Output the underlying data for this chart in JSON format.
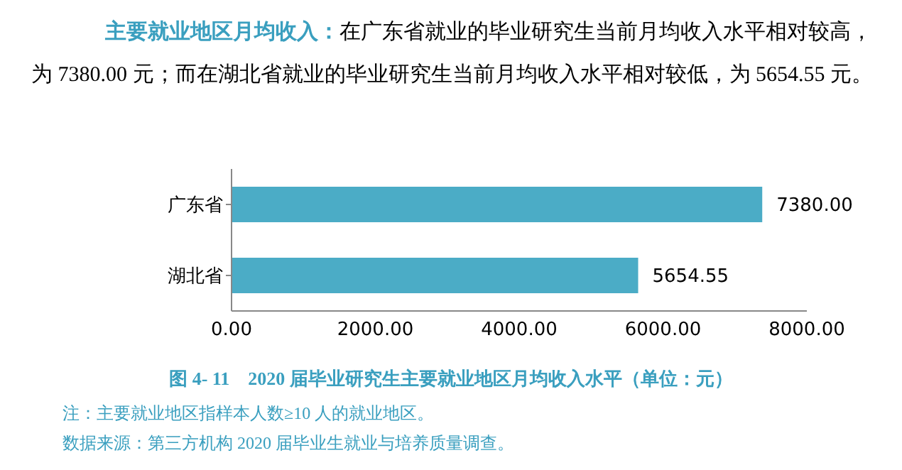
{
  "chart_data": {
    "type": "bar",
    "orientation": "horizontal",
    "title": "图 4- 11　2020 届毕业研究生主要就业地区月均收入水平（单位：元）",
    "categories": [
      "广东省",
      "湖北省"
    ],
    "values": [
      7380.0,
      5654.55
    ],
    "value_labels": [
      "7380.00",
      "5654.55"
    ],
    "color": "#4bacc6",
    "xlim": [
      0,
      8000
    ],
    "xticks": [
      {
        "value": 0,
        "label": "0.00"
      },
      {
        "value": 2000,
        "label": "2000.00"
      },
      {
        "value": 4000,
        "label": "4000.00"
      },
      {
        "value": 6000,
        "label": "6000.00"
      },
      {
        "value": 8000,
        "label": "8000.00"
      }
    ],
    "grid": false,
    "legend": false,
    "annotations": [
      "主要就业地区月均收入：",
      "在广东省就业的毕业研究生当前月均收入水平相对较高，为 7380.00 元；而在湖北省就业的毕业研究生当前月均收入水平相对较低，为 5654.55 元。",
      "注：主要就业地区指样本人数≥10 人的就业地区。",
      "数据来源：第三方机构 2020 届毕业生就业与培养质量调查。"
    ]
  }
}
